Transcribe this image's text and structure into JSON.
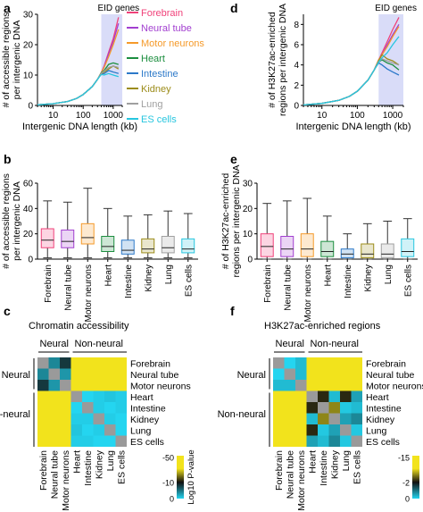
{
  "colors": {
    "Forebrain": "#f0427a",
    "Neural tube": "#a23fd0",
    "Motor neurons": "#f59a2a",
    "Heart": "#1c8e3f",
    "Intestine": "#2c79c9",
    "Kidney": "#9c8c1a",
    "Lung": "#a0a0a0",
    "ES cells": "#27c6df",
    "eid_band": "#d9dcf8",
    "heat_yellow": "#f2e31c",
    "heat_black": "#111111",
    "heat_cyan": "#24d5f0",
    "heat_gray": "#9a9a9a"
  },
  "panel_labels": [
    "a",
    "b",
    "c",
    "d",
    "e",
    "f"
  ],
  "chart_data": [
    {
      "panel": "a",
      "type": "line",
      "xlabel": "Intergenic DNA length (kb)",
      "ylabel_lines": [
        "# of accessible regions",
        "per intergenic DNA"
      ],
      "x_scale": "log",
      "xlim": [
        3,
        2000
      ],
      "ylim": [
        0,
        30
      ],
      "yticks": [
        0,
        10,
        20,
        30
      ],
      "xticks": [
        10,
        100,
        1000
      ],
      "band_label": "EID genes",
      "band": [
        400,
        2000
      ],
      "legend": [
        "Forebrain",
        "Neural tube",
        "Motor neurons",
        "Heart",
        "Intestine",
        "Kidney",
        "Lung",
        "ES cells"
      ],
      "x": [
        3,
        10,
        30,
        60,
        100,
        200,
        300,
        400,
        500,
        700,
        1000,
        1500
      ],
      "series": [
        {
          "name": "Forebrain",
          "values": [
            0.2,
            0.6,
            1.3,
            2.3,
            3.6,
            6.2,
            8.6,
            10.8,
            13,
            17.5,
            22,
            29
          ]
        },
        {
          "name": "Neural tube",
          "values": [
            0.2,
            0.6,
            1.3,
            2.3,
            3.6,
            6.2,
            8.6,
            10.8,
            12.8,
            17,
            21,
            27
          ]
        },
        {
          "name": "Motor neurons",
          "values": [
            0.2,
            0.6,
            1.3,
            2.3,
            3.6,
            6.2,
            8.6,
            10.8,
            12.5,
            16,
            20,
            25
          ]
        },
        {
          "name": "Heart",
          "values": [
            0.2,
            0.6,
            1.3,
            2.3,
            3.6,
            6.2,
            8.6,
            10.8,
            11.5,
            13.5,
            14,
            13.5
          ]
        },
        {
          "name": "Intestine",
          "values": [
            0.2,
            0.6,
            1.3,
            2.3,
            3.6,
            6.2,
            8.6,
            10.5,
            10.5,
            11.5,
            11,
            10.5
          ]
        },
        {
          "name": "Kidney",
          "values": [
            0.2,
            0.6,
            1.3,
            2.3,
            3.6,
            6.2,
            8.6,
            10.5,
            11,
            12,
            13,
            12
          ]
        },
        {
          "name": "Lung",
          "values": [
            0.2,
            0.6,
            1.3,
            2.3,
            3.6,
            6.2,
            8.6,
            10.6,
            11.3,
            12.5,
            13,
            12.5
          ]
        },
        {
          "name": "ES cells",
          "values": [
            0.2,
            0.6,
            1.3,
            2.3,
            3.6,
            6.2,
            8.6,
            10.2,
            10,
            10.5,
            10,
            9.5
          ]
        }
      ]
    },
    {
      "panel": "d",
      "type": "line",
      "xlabel": "Intergenic DNA length (kb)",
      "ylabel_lines": [
        "# of H3K27ac-enriched",
        "regions per intergenic DNA"
      ],
      "x_scale": "log",
      "xlim": [
        3,
        2000
      ],
      "ylim": [
        0,
        9
      ],
      "yticks": [
        0,
        2,
        4,
        6,
        8
      ],
      "xticks": [
        10,
        100,
        1000
      ],
      "band_label": "EID genes",
      "band": [
        400,
        2000
      ],
      "x": [
        3,
        10,
        30,
        60,
        100,
        200,
        300,
        400,
        500,
        700,
        1000,
        1500
      ],
      "series": [
        {
          "name": "Forebrain",
          "values": [
            0.05,
            0.2,
            0.5,
            0.9,
            1.4,
            2.5,
            3.5,
            4.5,
            5.2,
            6.3,
            7.5,
            8.7
          ]
        },
        {
          "name": "Neural tube",
          "values": [
            0.05,
            0.2,
            0.5,
            0.9,
            1.4,
            2.5,
            3.5,
            4.5,
            5,
            6,
            7,
            8
          ]
        },
        {
          "name": "Motor neurons",
          "values": [
            0.05,
            0.2,
            0.5,
            0.9,
            1.4,
            2.5,
            3.5,
            4.5,
            5,
            5.8,
            6.8,
            7.8
          ]
        },
        {
          "name": "Heart",
          "values": [
            0.05,
            0.2,
            0.5,
            0.9,
            1.4,
            2.5,
            3.5,
            4.3,
            4.5,
            4.2,
            4,
            3.5
          ]
        },
        {
          "name": "Intestine",
          "values": [
            0.05,
            0.2,
            0.5,
            0.9,
            1.4,
            2.5,
            3.5,
            4.2,
            4,
            3.6,
            3.3,
            3
          ]
        },
        {
          "name": "Kidney",
          "values": [
            0.05,
            0.2,
            0.5,
            0.9,
            1.4,
            2.5,
            3.5,
            4.4,
            5,
            4.6,
            4.4,
            4
          ]
        },
        {
          "name": "Lung",
          "values": [
            0.05,
            0.2,
            0.5,
            0.9,
            1.4,
            2.5,
            3.5,
            4.3,
            4.6,
            4.4,
            4.2,
            4
          ]
        },
        {
          "name": "ES cells",
          "values": [
            0.05,
            0.2,
            0.5,
            0.9,
            1.4,
            2.5,
            3.5,
            4.3,
            4.7,
            5.2,
            6,
            6.8
          ]
        }
      ]
    },
    {
      "panel": "b",
      "type": "box",
      "ylabel_lines": [
        "# of accessible regions",
        "per intergenic DNA"
      ],
      "ylim": [
        0,
        60
      ],
      "yticks": [
        0,
        20,
        40,
        60
      ],
      "categories": [
        "Forebrain",
        "Neural tube",
        "Motor neurons",
        "Heart",
        "Intestine",
        "Kidney",
        "Lung",
        "ES cells"
      ],
      "boxes": [
        {
          "min": 1,
          "q1": 9,
          "median": 15,
          "q3": 24,
          "max": 46
        },
        {
          "min": 1,
          "q1": 9,
          "median": 14,
          "q3": 23,
          "max": 45
        },
        {
          "min": 1,
          "q1": 12,
          "median": 17,
          "q3": 28,
          "max": 56
        },
        {
          "min": 1,
          "q1": 6,
          "median": 10,
          "q3": 18,
          "max": 40
        },
        {
          "min": 1,
          "q1": 4,
          "median": 7,
          "q3": 15,
          "max": 34
        },
        {
          "min": 1,
          "q1": 5,
          "median": 8,
          "q3": 16,
          "max": 35
        },
        {
          "min": 1,
          "q1": 5,
          "median": 9,
          "q3": 18,
          "max": 38
        },
        {
          "min": 1,
          "q1": 5,
          "median": 8,
          "q3": 16,
          "max": 36
        }
      ]
    },
    {
      "panel": "e",
      "type": "box",
      "ylabel_lines": [
        "# of H3K27ac-enriched",
        "regions per intergenic DNA"
      ],
      "ylim": [
        0,
        30
      ],
      "yticks": [
        0,
        10,
        20,
        30
      ],
      "categories": [
        "Forebrain",
        "Neural tube",
        "Motor neurons",
        "Heart",
        "Intestine",
        "Kidney",
        "Lung",
        "ES cells"
      ],
      "boxes": [
        {
          "min": 0,
          "q1": 1,
          "median": 5,
          "q3": 10,
          "max": 22
        },
        {
          "min": 0,
          "q1": 1,
          "median": 4,
          "q3": 9,
          "max": 23
        },
        {
          "min": 0,
          "q1": 1,
          "median": 4,
          "q3": 10,
          "max": 24
        },
        {
          "min": 0,
          "q1": 1,
          "median": 3,
          "q3": 7,
          "max": 17
        },
        {
          "min": 0,
          "q1": 0.5,
          "median": 2,
          "q3": 4,
          "max": 10
        },
        {
          "min": 0,
          "q1": 0.5,
          "median": 2,
          "q3": 6,
          "max": 14
        },
        {
          "min": 0,
          "q1": 0.5,
          "median": 2,
          "q3": 6,
          "max": 15
        },
        {
          "min": 0,
          "q1": 1,
          "median": 3,
          "q3": 8,
          "max": 16
        }
      ]
    },
    {
      "panel": "c",
      "type": "heatmap",
      "title": "Chromatin accessibility",
      "group_top": [
        "Neural",
        "Non-neural"
      ],
      "group_left": [
        "Neural",
        "Non-neural"
      ],
      "labels": [
        "Forebrain",
        "Neural tube",
        "Motor neurons",
        "Heart",
        "Intestine",
        "Kidney",
        "Lung",
        "ES cells"
      ],
      "colorbar_label": "Log10 P-value",
      "colorbar_ticks": [
        "-50",
        "-10",
        "0"
      ],
      "matrix": [
        [
          null,
          -10,
          -20,
          -45,
          -45,
          -40,
          -45,
          -45
        ],
        [
          -10,
          null,
          -8,
          -45,
          -45,
          -45,
          -45,
          -40
        ],
        [
          -20,
          -8,
          null,
          -40,
          -45,
          -45,
          -40,
          -45
        ],
        [
          -45,
          -45,
          -40,
          null,
          0,
          -1,
          -2,
          -1
        ],
        [
          -45,
          -45,
          -45,
          0,
          null,
          -1,
          0,
          -1
        ],
        [
          -40,
          -45,
          -45,
          -1,
          -1,
          null,
          -1,
          0
        ],
        [
          -45,
          -45,
          -40,
          -2,
          0,
          -1,
          null,
          0
        ],
        [
          -45,
          -40,
          -45,
          -1,
          -1,
          0,
          0,
          null
        ]
      ]
    },
    {
      "panel": "f",
      "type": "heatmap",
      "title": "H3K27ac-enriched regions",
      "group_top": [
        "Neural",
        "Non-neural"
      ],
      "group_left": [
        "Neural",
        "Non-neural"
      ],
      "labels": [
        "Forebrain",
        "Neural tube",
        "Motor neurons",
        "Heart",
        "Intestine",
        "Kidney",
        "Lung",
        "ES cells"
      ],
      "colorbar_label": "Log10 P-value",
      "colorbar_ticks": [
        "-15",
        "-2",
        "0"
      ],
      "matrix": [
        [
          null,
          0,
          -1,
          -13,
          -13,
          -14,
          -13,
          -13
        ],
        [
          0,
          null,
          -1,
          -13,
          -14,
          -13,
          -14,
          -13
        ],
        [
          -1,
          -1,
          null,
          -12,
          -13,
          -13,
          -12,
          -14
        ],
        [
          -13,
          -13,
          -12,
          null,
          -8,
          -1,
          -8,
          -2
        ],
        [
          -13,
          -14,
          -13,
          -8,
          null,
          -10,
          -0.5,
          -1
        ],
        [
          -14,
          -13,
          -13,
          -1,
          -10,
          null,
          -2,
          -3
        ],
        [
          -13,
          -14,
          -12,
          -8,
          -0.5,
          -2,
          null,
          -0.5
        ],
        [
          -13,
          -13,
          -14,
          -2,
          -1,
          -3,
          -0.5,
          null
        ]
      ]
    }
  ]
}
